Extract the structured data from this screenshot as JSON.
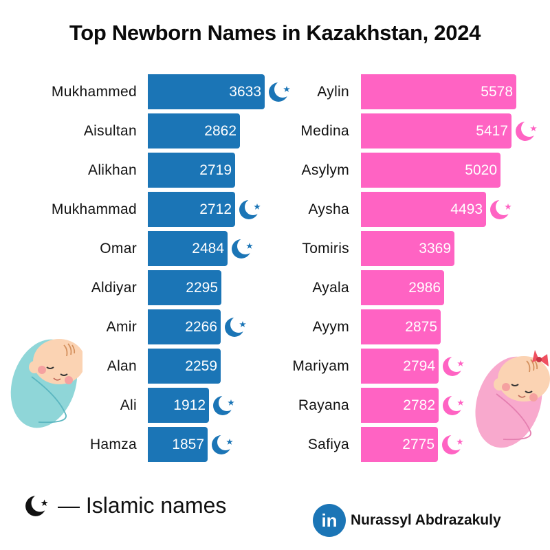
{
  "title": "Top Newborn Names in Kazakhstan, 2024",
  "colors": {
    "boys_bar": "#1b75b6",
    "girls_bar": "#ff63c3",
    "text": "#111111",
    "background": "#ffffff"
  },
  "boys": [
    {
      "name": "Mukhammed",
      "count": "3633",
      "islamic": true
    },
    {
      "name": "Aisultan",
      "count": "2862",
      "islamic": false
    },
    {
      "name": "Alikhan",
      "count": "2719",
      "islamic": false
    },
    {
      "name": "Mukhammad",
      "count": "2712",
      "islamic": true
    },
    {
      "name": "Omar",
      "count": "2484",
      "islamic": true
    },
    {
      "name": "Aldiyar",
      "count": "2295",
      "islamic": false
    },
    {
      "name": "Amir",
      "count": "2266",
      "islamic": true
    },
    {
      "name": "Alan",
      "count": "2259",
      "islamic": false
    },
    {
      "name": "Ali",
      "count": "1912",
      "islamic": true
    },
    {
      "name": "Hamza",
      "count": "1857",
      "islamic": true
    }
  ],
  "girls": [
    {
      "name": "Aylin",
      "count": "5578",
      "islamic": false
    },
    {
      "name": "Medina",
      "count": "5417",
      "islamic": true
    },
    {
      "name": "Asylym",
      "count": "5020",
      "islamic": false
    },
    {
      "name": "Aysha",
      "count": "4493",
      "islamic": true
    },
    {
      "name": "Tomiris",
      "count": "3369",
      "islamic": false
    },
    {
      "name": "Ayala",
      "count": "2986",
      "islamic": false
    },
    {
      "name": "Ayym",
      "count": "2875",
      "islamic": false
    },
    {
      "name": "Mariyam",
      "count": "2794",
      "islamic": true
    },
    {
      "name": "Rayana",
      "count": "2782",
      "islamic": true
    },
    {
      "name": "Safiya",
      "count": "2775",
      "islamic": true
    }
  ],
  "legend": {
    "icon": "crescent-star-icon",
    "text": "— Islamic names"
  },
  "author": {
    "badge": "in",
    "icon": "linkedin-icon",
    "name": "Nurassyl Abdrazakuly"
  },
  "chart_data": [
    {
      "type": "bar",
      "orientation": "horizontal",
      "title": "Top Newborn Names in Kazakhstan, 2024 — Boys",
      "categories": [
        "Mukhammed",
        "Aisultan",
        "Alikhan",
        "Mukhammad",
        "Omar",
        "Aldiyar",
        "Amir",
        "Alan",
        "Ali",
        "Hamza"
      ],
      "values": [
        3633,
        2862,
        2719,
        2712,
        2484,
        2295,
        2266,
        2259,
        1912,
        1857
      ],
      "islamic": [
        true,
        false,
        false,
        true,
        true,
        false,
        true,
        false,
        true,
        true
      ],
      "color": "#1b75b6",
      "xlabel": "",
      "ylabel": "",
      "grid": false,
      "data_labels": true
    },
    {
      "type": "bar",
      "orientation": "horizontal",
      "title": "Top Newborn Names in Kazakhstan, 2024 — Girls",
      "categories": [
        "Aylin",
        "Medina",
        "Asylym",
        "Aysha",
        "Tomiris",
        "Ayala",
        "Ayym",
        "Mariyam",
        "Rayana",
        "Safiya"
      ],
      "values": [
        5578,
        5417,
        5020,
        4493,
        3369,
        2986,
        2875,
        2794,
        2782,
        2775
      ],
      "islamic": [
        false,
        true,
        false,
        true,
        false,
        false,
        false,
        true,
        true,
        true
      ],
      "color": "#ff63c3",
      "xlabel": "",
      "ylabel": "",
      "grid": false,
      "data_labels": true
    }
  ],
  "legend_annotation": "crescent = Islamic names"
}
